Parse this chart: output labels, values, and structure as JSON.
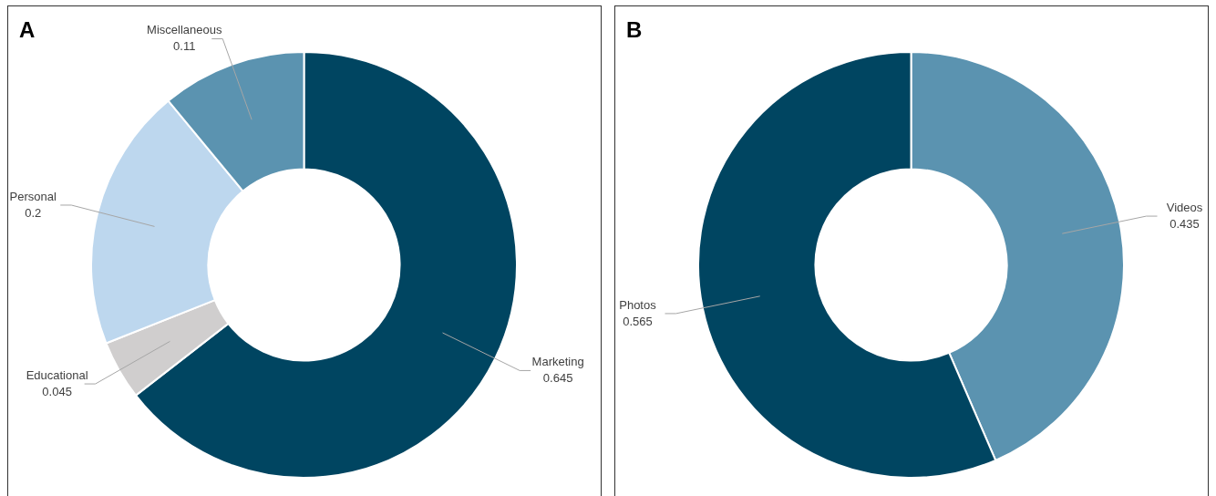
{
  "chart_data": [
    {
      "type": "donut",
      "title": "A",
      "categories": [
        "Marketing",
        "Educational",
        "Personal",
        "Miscellaneous"
      ],
      "values": [
        0.645,
        0.045,
        0.2,
        0.11
      ],
      "colors": [
        "#004561",
        "#d0cece",
        "#bdd7ee",
        "#5b93b0"
      ],
      "data_labels": true,
      "legend": false
    },
    {
      "type": "donut",
      "title": "B",
      "categories": [
        "Videos",
        "Photos"
      ],
      "values": [
        0.435,
        0.565
      ],
      "colors": [
        "#5b93b0",
        "#004561"
      ],
      "data_labels": true,
      "legend": false
    }
  ]
}
